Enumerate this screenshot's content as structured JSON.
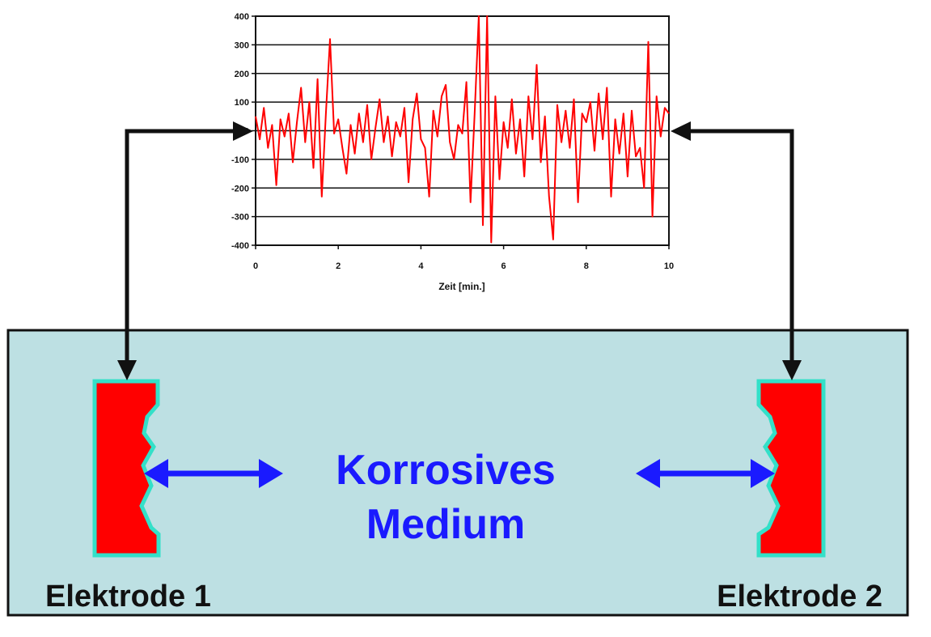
{
  "diagram": {
    "medium_line1": "Korrosives",
    "medium_line2": "Medium",
    "electrode1_label": "Elektrode 1",
    "electrode2_label": "Elektrode 2",
    "colors": {
      "tank_fill": "#bde0e3",
      "tank_border": "#111111",
      "electrode_fill": "#ff0000",
      "electrode_border": "#33e0c8",
      "medium_text": "#1a1aff",
      "ion_arrow": "#1a1aff",
      "wire": "#111111",
      "signal": "#ff0000"
    }
  },
  "chart_data": {
    "type": "line",
    "xlabel": "Zeit [min.]",
    "ylabel": "",
    "xlim": [
      0,
      10
    ],
    "ylim": [
      -400,
      400
    ],
    "xticks": [
      "0",
      "2",
      "4",
      "6",
      "8",
      "10"
    ],
    "yticks": [
      "400",
      "300",
      "200",
      "100",
      "0",
      "-100",
      "-200",
      "-300",
      "-400"
    ],
    "grid": true,
    "series": [
      {
        "color": "#ff0000",
        "x": [
          0,
          0.1,
          0.2,
          0.3,
          0.4,
          0.5,
          0.6,
          0.7,
          0.8,
          0.9,
          1.0,
          1.1,
          1.2,
          1.3,
          1.4,
          1.5,
          1.6,
          1.7,
          1.8,
          1.9,
          2.0,
          2.1,
          2.2,
          2.3,
          2.4,
          2.5,
          2.6,
          2.7,
          2.8,
          2.9,
          3.0,
          3.1,
          3.2,
          3.3,
          3.4,
          3.5,
          3.6,
          3.7,
          3.8,
          3.9,
          4.0,
          4.1,
          4.2,
          4.3,
          4.4,
          4.5,
          4.6,
          4.7,
          4.8,
          4.9,
          5.0,
          5.1,
          5.2,
          5.3,
          5.4,
          5.5,
          5.6,
          5.7,
          5.8,
          5.9,
          6.0,
          6.1,
          6.2,
          6.3,
          6.4,
          6.5,
          6.6,
          6.7,
          6.8,
          6.9,
          7.0,
          7.1,
          7.2,
          7.3,
          7.4,
          7.5,
          7.6,
          7.7,
          7.8,
          7.9,
          8.0,
          8.1,
          8.2,
          8.3,
          8.4,
          8.5,
          8.6,
          8.7,
          8.8,
          8.9,
          9.0,
          9.1,
          9.2,
          9.3,
          9.4,
          9.5,
          9.6,
          9.7,
          9.8,
          9.9,
          10.0
        ],
        "y": [
          50,
          -30,
          80,
          -60,
          20,
          -190,
          40,
          -20,
          60,
          -110,
          30,
          150,
          -40,
          100,
          -130,
          180,
          -230,
          60,
          320,
          -10,
          40,
          -60,
          -150,
          20,
          -80,
          60,
          -40,
          90,
          -100,
          10,
          110,
          -40,
          50,
          -90,
          30,
          -20,
          80,
          -180,
          40,
          130,
          -30,
          -60,
          -230,
          70,
          -20,
          120,
          160,
          -40,
          -100,
          20,
          -10,
          170,
          -250,
          60,
          400,
          -330,
          410,
          -390,
          120,
          -170,
          30,
          -60,
          110,
          -80,
          40,
          -160,
          120,
          -30,
          230,
          -110,
          50,
          -230,
          -380,
          90,
          -40,
          70,
          -60,
          110,
          -250,
          60,
          30,
          100,
          -70,
          130,
          -30,
          150,
          -230,
          40,
          -80,
          60,
          -160,
          70,
          -90,
          -60,
          -200,
          310,
          -300,
          120,
          -20,
          80,
          60
        ]
      }
    ]
  }
}
